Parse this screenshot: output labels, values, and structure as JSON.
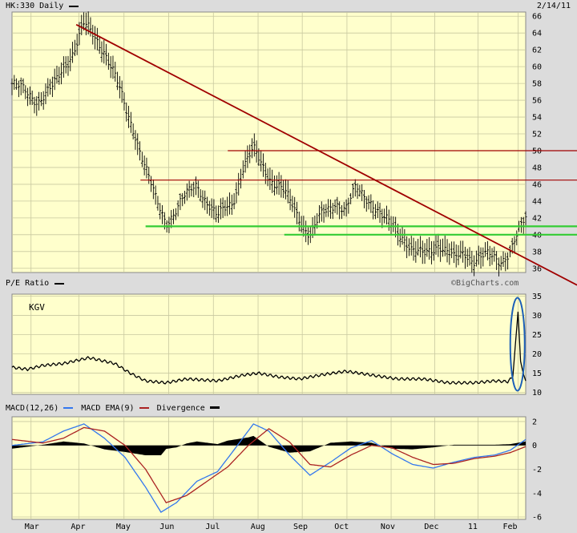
{
  "header": {
    "symbol": "HK:330 Daily",
    "date": "2/14/11"
  },
  "pe_panel": {
    "title": "P/E Ratio",
    "watermark": "©BigCharts.com",
    "inner_label": "KGV"
  },
  "macd_panel": {
    "legend_macd": "MACD(12,26)",
    "legend_ema": "MACD EMA(9)",
    "legend_div": "Divergence"
  },
  "colors": {
    "plot_bg": "#ffffcc",
    "frame_bg": "#dcdcdc",
    "trend": "#a00000",
    "support": "#33cc33",
    "macd_blue": "#3377ee",
    "ema_red": "#aa2222",
    "circle": "#1c5fb8"
  },
  "chart_data": [
    {
      "type": "ohlc",
      "title": "HK:330 Daily",
      "x_labels": [
        "Mar",
        "Apr",
        "May",
        "Jun",
        "Jul",
        "Aug",
        "Sep",
        "Oct",
        "Nov",
        "Dec",
        "11",
        "Feb"
      ],
      "y_ticks": [
        36,
        38,
        40,
        42,
        44,
        46,
        48,
        50,
        52,
        54,
        56,
        58,
        60,
        62,
        64,
        66
      ],
      "ylim": [
        35.5,
        66.5
      ],
      "price_path": [
        [
          0,
          58
        ],
        [
          0.05,
          56
        ],
        [
          0.08,
          57.5
        ],
        [
          0.12,
          62
        ],
        [
          0.14,
          65
        ],
        [
          0.18,
          62
        ],
        [
          0.2,
          59
        ],
        [
          0.22,
          55
        ],
        [
          0.24,
          52
        ],
        [
          0.26,
          48
        ],
        [
          0.28,
          44
        ],
        [
          0.3,
          41.5
        ],
        [
          0.33,
          44
        ],
        [
          0.36,
          46
        ],
        [
          0.38,
          44
        ],
        [
          0.4,
          42
        ],
        [
          0.43,
          44
        ],
        [
          0.45,
          48
        ],
        [
          0.47,
          50
        ],
        [
          0.5,
          47
        ],
        [
          0.53,
          45
        ],
        [
          0.56,
          42
        ],
        [
          0.58,
          40
        ],
        [
          0.6,
          42
        ],
        [
          0.63,
          44
        ],
        [
          0.65,
          43
        ],
        [
          0.67,
          45.5
        ],
        [
          0.7,
          44
        ],
        [
          0.72,
          42
        ],
        [
          0.74,
          41
        ],
        [
          0.76,
          40
        ],
        [
          0.78,
          38
        ],
        [
          0.8,
          37.5
        ],
        [
          0.83,
          39
        ],
        [
          0.86,
          37
        ],
        [
          0.88,
          38
        ],
        [
          0.9,
          37
        ],
        [
          0.93,
          37.5
        ],
        [
          0.95,
          37
        ],
        [
          0.97,
          38
        ],
        [
          0.985,
          40
        ],
        [
          1,
          42
        ]
      ],
      "trend_line": {
        "from": [
          0.125,
          65
        ],
        "to": [
          1.1,
          34
        ]
      },
      "resistance": [
        {
          "from": 0.42,
          "level": 50
        },
        {
          "from": 0.25,
          "level": 46.5
        }
      ],
      "support": [
        {
          "from": 0.26,
          "level": 41
        },
        {
          "from": 0.53,
          "level": 40
        }
      ]
    },
    {
      "type": "line",
      "title": "P/E Ratio",
      "y_ticks": [
        10,
        15,
        20,
        25,
        30,
        35
      ],
      "ylim": [
        9.5,
        35.5
      ],
      "series": [
        {
          "name": "KGV",
          "points": [
            [
              0,
              16.5
            ],
            [
              0.03,
              16
            ],
            [
              0.06,
              17
            ],
            [
              0.1,
              17.5
            ],
            [
              0.15,
              19
            ],
            [
              0.2,
              17.5
            ],
            [
              0.23,
              15
            ],
            [
              0.26,
              13
            ],
            [
              0.3,
              12.5
            ],
            [
              0.34,
              13.5
            ],
            [
              0.4,
              13
            ],
            [
              0.45,
              14.5
            ],
            [
              0.48,
              15
            ],
            [
              0.52,
              14
            ],
            [
              0.56,
              13.5
            ],
            [
              0.6,
              14.5
            ],
            [
              0.65,
              15.5
            ],
            [
              0.7,
              14.5
            ],
            [
              0.75,
              13.5
            ],
            [
              0.8,
              13.5
            ],
            [
              0.85,
              12.5
            ],
            [
              0.9,
              12.5
            ],
            [
              0.94,
              13
            ],
            [
              0.965,
              12.8
            ],
            [
              0.975,
              14
            ],
            [
              0.985,
              31
            ],
            [
              0.99,
              18
            ],
            [
              0.995,
              15
            ],
            [
              1,
              13
            ]
          ]
        }
      ],
      "annotation": "circled spike at right edge"
    },
    {
      "type": "line",
      "title": "MACD(12,26)",
      "y_ticks": [
        -6,
        -4,
        -2,
        0,
        2
      ],
      "ylim": [
        -6.2,
        2.4
      ],
      "series": [
        {
          "name": "MACD(12,26)",
          "points": [
            [
              0,
              0
            ],
            [
              0.06,
              0.3
            ],
            [
              0.1,
              1.2
            ],
            [
              0.14,
              1.8
            ],
            [
              0.18,
              0.6
            ],
            [
              0.22,
              -1
            ],
            [
              0.26,
              -3.5
            ],
            [
              0.29,
              -5.6
            ],
            [
              0.32,
              -4.8
            ],
            [
              0.36,
              -3
            ],
            [
              0.4,
              -2.2
            ],
            [
              0.43,
              -0.5
            ],
            [
              0.47,
              1.8
            ],
            [
              0.5,
              1.2
            ],
            [
              0.54,
              -0.8
            ],
            [
              0.58,
              -2.5
            ],
            [
              0.62,
              -1.4
            ],
            [
              0.66,
              -0.2
            ],
            [
              0.7,
              0.4
            ],
            [
              0.74,
              -0.7
            ],
            [
              0.78,
              -1.6
            ],
            [
              0.82,
              -1.9
            ],
            [
              0.86,
              -1.4
            ],
            [
              0.9,
              -1
            ],
            [
              0.94,
              -0.8
            ],
            [
              0.97,
              -0.4
            ],
            [
              1,
              0.5
            ]
          ]
        },
        {
          "name": "MACD EMA(9)",
          "points": [
            [
              0,
              0.5
            ],
            [
              0.06,
              0.2
            ],
            [
              0.1,
              0.6
            ],
            [
              0.14,
              1.5
            ],
            [
              0.18,
              1.2
            ],
            [
              0.22,
              0
            ],
            [
              0.26,
              -2
            ],
            [
              0.3,
              -4.8
            ],
            [
              0.34,
              -4.2
            ],
            [
              0.38,
              -3
            ],
            [
              0.42,
              -1.8
            ],
            [
              0.46,
              0
            ],
            [
              0.5,
              1.4
            ],
            [
              0.54,
              0.3
            ],
            [
              0.58,
              -1.6
            ],
            [
              0.62,
              -1.8
            ],
            [
              0.66,
              -0.8
            ],
            [
              0.7,
              0
            ],
            [
              0.74,
              -0.2
            ],
            [
              0.78,
              -1
            ],
            [
              0.82,
              -1.6
            ],
            [
              0.86,
              -1.5
            ],
            [
              0.9,
              -1.1
            ],
            [
              0.94,
              -0.9
            ],
            [
              0.97,
              -0.6
            ],
            [
              1,
              -0.1
            ]
          ]
        }
      ]
    }
  ]
}
